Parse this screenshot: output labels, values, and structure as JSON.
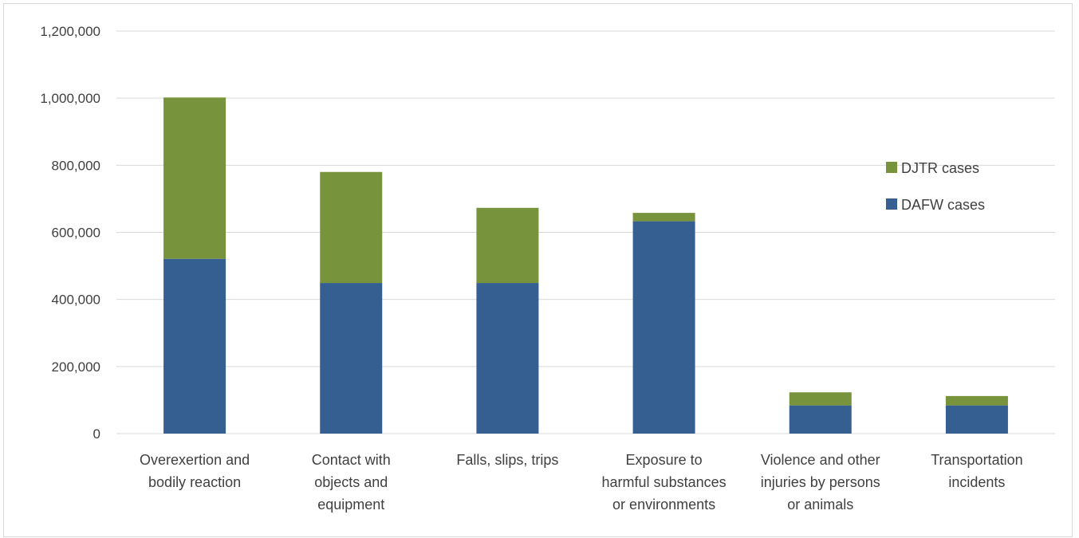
{
  "chart_data": {
    "type": "bar",
    "stacked": true,
    "title": "",
    "xlabel": "",
    "ylabel": "",
    "ylim": [
      0,
      1200000
    ],
    "yticks": [
      0,
      200000,
      400000,
      600000,
      800000,
      1000000,
      1200000
    ],
    "ytick_labels": [
      "0",
      "200,000",
      "400,000",
      "600,000",
      "800,000",
      "1,000,000",
      "1,200,000"
    ],
    "grid": true,
    "legend_position": "right",
    "categories": [
      [
        "Overexertion and",
        "bodily reaction"
      ],
      [
        "Contact with",
        "objects and",
        "equipment"
      ],
      [
        "Falls, slips, trips"
      ],
      [
        "Exposure to",
        "harmful substances",
        "or environments"
      ],
      [
        "Violence and other",
        "injuries by persons",
        "or animals"
      ],
      [
        "Transportation",
        "incidents"
      ]
    ],
    "series": [
      {
        "name": "DAFW cases",
        "color": "#355f91",
        "values": [
          521000,
          449000,
          449000,
          633000,
          84000,
          84000
        ]
      },
      {
        "name": "DJTR cases",
        "color": "#77933c",
        "values": [
          481000,
          331000,
          224000,
          25000,
          39000,
          28000
        ]
      }
    ],
    "legend_order": [
      1,
      0
    ]
  }
}
